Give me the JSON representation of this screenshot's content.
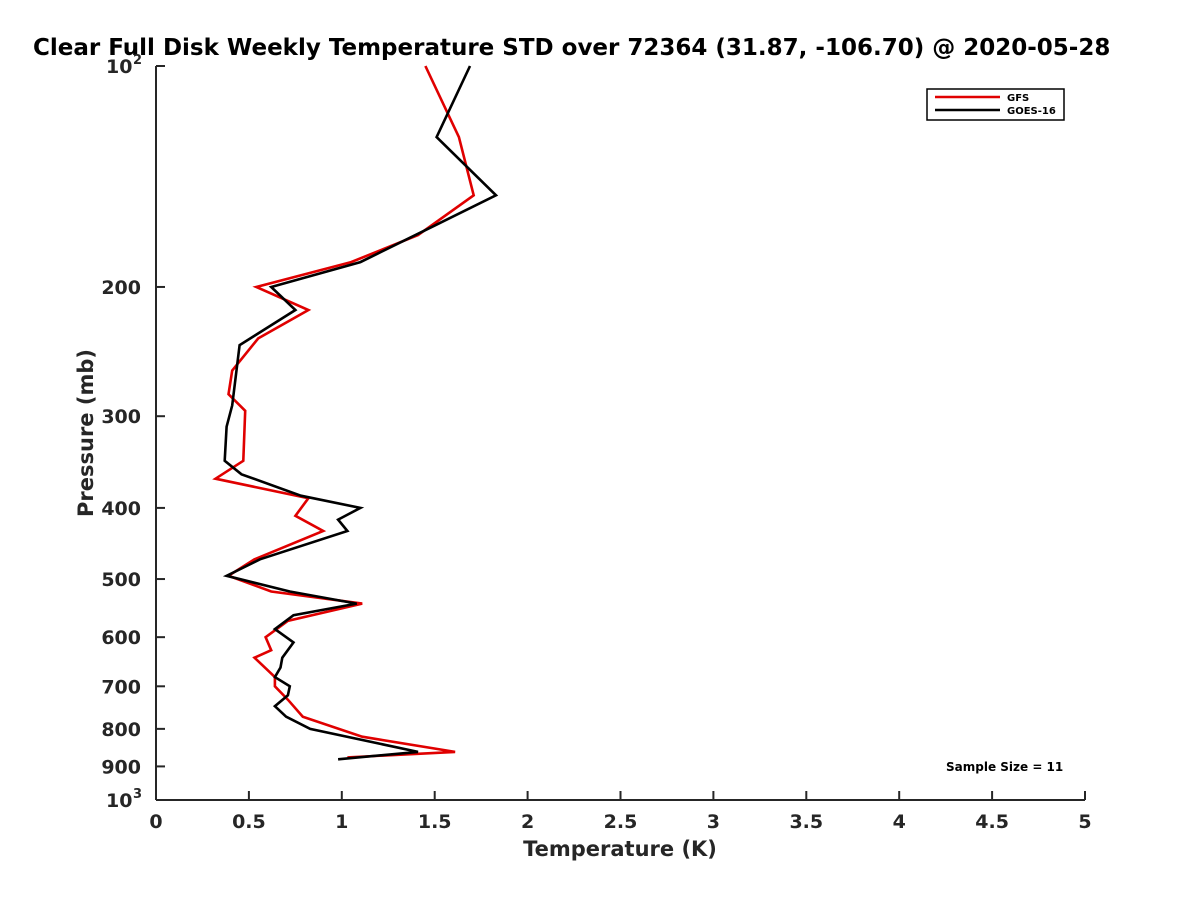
{
  "chart_data": {
    "type": "line",
    "title": "Clear Full Disk Weekly Temperature STD over 72364 (31.87, -106.70) @ 2020-05-28",
    "xlabel": "Temperature (K)",
    "ylabel": "Pressure (mb)",
    "xlim": [
      0,
      5
    ],
    "ylim": [
      100,
      1000
    ],
    "y_scale": "log",
    "y_reversed": true,
    "grid": false,
    "legend_position": "top-right",
    "x_ticks": [
      0,
      0.5,
      1,
      1.5,
      2,
      2.5,
      3,
      3.5,
      4,
      4.5,
      5
    ],
    "x_tick_labels": [
      "0",
      "0.5",
      "1",
      "1.5",
      "2",
      "2.5",
      "3",
      "3.5",
      "4",
      "4.5",
      "5"
    ],
    "y_ticks": [
      {
        "value": 100,
        "label": "10",
        "sup": "2"
      },
      {
        "value": 200,
        "label": "200",
        "sup": ""
      },
      {
        "value": 300,
        "label": "300",
        "sup": ""
      },
      {
        "value": 400,
        "label": "400",
        "sup": ""
      },
      {
        "value": 500,
        "label": "500",
        "sup": ""
      },
      {
        "value": 600,
        "label": "600",
        "sup": ""
      },
      {
        "value": 700,
        "label": "700",
        "sup": ""
      },
      {
        "value": 800,
        "label": "800",
        "sup": ""
      },
      {
        "value": 900,
        "label": "900",
        "sup": ""
      },
      {
        "value": 1000,
        "label": "10",
        "sup": "3"
      }
    ],
    "annotation": "Sample Size = 11",
    "series": [
      {
        "name": "GFS",
        "color": "#e00000",
        "x": [
          1.45,
          1.63,
          1.71,
          1.41,
          1.05,
          0.54,
          0.82,
          0.55,
          0.41,
          0.39,
          0.48,
          0.47,
          0.32,
          0.82,
          0.75,
          0.9,
          0.53,
          0.39,
          0.62,
          1.11,
          0.71,
          0.59,
          0.62,
          0.53,
          0.64,
          0.64,
          0.71,
          0.79,
          1.11,
          1.61,
          1.03
        ],
        "y": [
          100,
          125,
          150,
          170,
          185,
          200,
          215,
          235,
          260,
          280,
          295,
          345,
          365,
          388,
          410,
          430,
          470,
          495,
          520,
          540,
          570,
          600,
          625,
          640,
          680,
          700,
          730,
          770,
          820,
          860,
          875
        ]
      },
      {
        "name": "GOES-16",
        "color": "#000000",
        "x": [
          1.69,
          1.51,
          1.83,
          1.5,
          1.1,
          0.62,
          0.75,
          0.45,
          0.41,
          0.38,
          0.37,
          0.46,
          0.78,
          1.1,
          0.98,
          1.03,
          0.56,
          0.38,
          0.72,
          1.08,
          0.74,
          0.64,
          0.74,
          0.68,
          0.67,
          0.64,
          0.72,
          0.71,
          0.64,
          0.7,
          0.83,
          1.41,
          0.98
        ],
        "y": [
          100,
          125,
          150,
          165,
          185,
          200,
          215,
          240,
          290,
          310,
          345,
          360,
          385,
          400,
          415,
          430,
          470,
          495,
          520,
          540,
          560,
          585,
          610,
          640,
          660,
          680,
          700,
          720,
          745,
          770,
          800,
          860,
          880
        ]
      }
    ]
  }
}
